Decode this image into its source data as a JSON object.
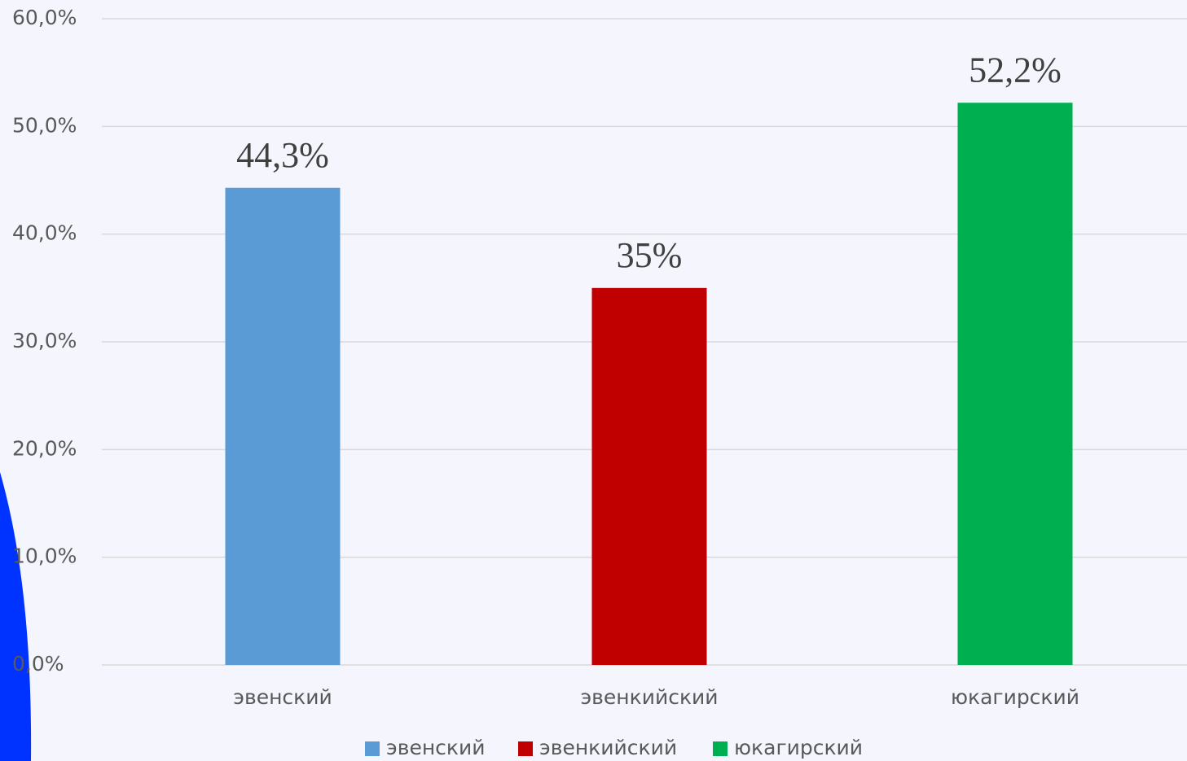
{
  "chart_data": {
    "type": "bar",
    "categories": [
      "эвенский",
      "эвенкийский",
      "юкагирский"
    ],
    "values": [
      44.3,
      35,
      52.2
    ],
    "value_labels": [
      "44,3%",
      "35%",
      "52,2%"
    ],
    "colors": [
      "#5b9bd5",
      "#c00000",
      "#00b050"
    ],
    "ylim": [
      0,
      60
    ],
    "yticks": [
      {
        "value": 0,
        "label": "0,0%"
      },
      {
        "value": 10,
        "label": "10,0%"
      },
      {
        "value": 20,
        "label": "20,0%"
      },
      {
        "value": 30,
        "label": "30,0%"
      },
      {
        "value": 40,
        "label": "40,0%"
      },
      {
        "value": 50,
        "label": "50,0%"
      },
      {
        "value": 60,
        "label": "60,0%"
      }
    ],
    "grid": true,
    "legend": "bottom"
  }
}
